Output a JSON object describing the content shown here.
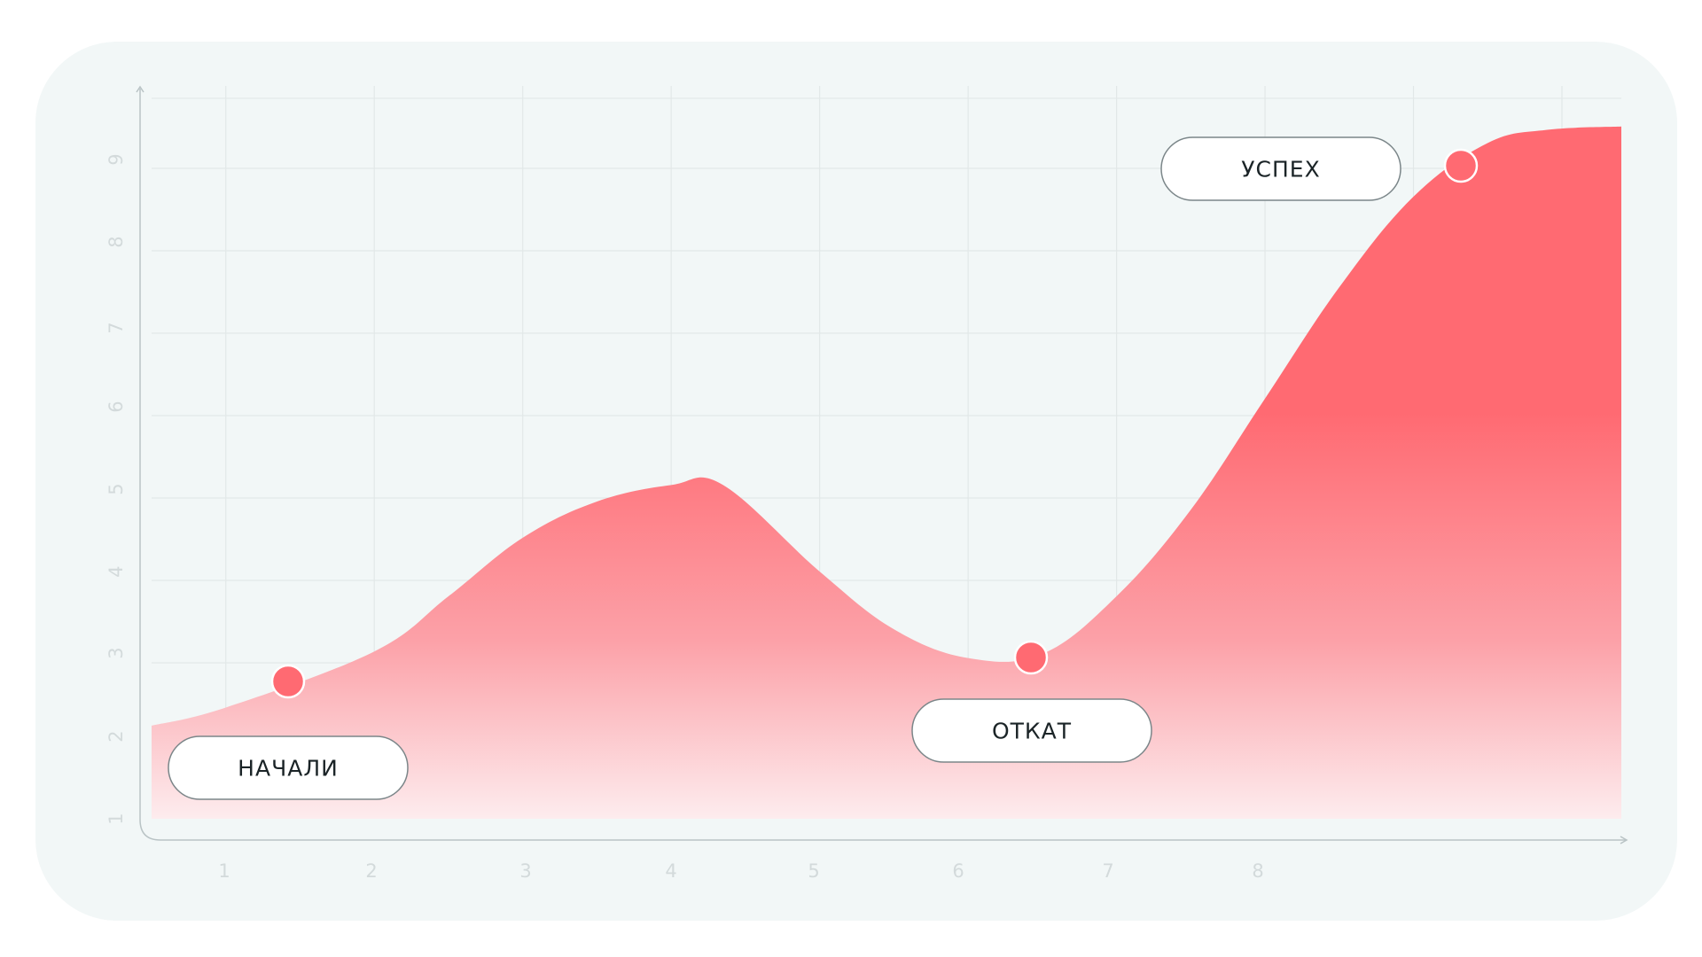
{
  "chart_data": {
    "type": "area",
    "title": "",
    "xlabel": "",
    "ylabel": "",
    "x_ticks": [
      "1",
      "2",
      "3",
      "4",
      "5",
      "6",
      "7",
      "8"
    ],
    "y_ticks": [
      "1",
      "2",
      "3",
      "4",
      "5",
      "6",
      "7",
      "8",
      "9"
    ],
    "xlim": [
      0.5,
      10.4
    ],
    "ylim": [
      1,
      9.5
    ],
    "grid": true,
    "series": [
      {
        "values": [
          {
            "x": 0.5,
            "y": 2.13
          },
          {
            "x": 1.0,
            "y": 2.35
          },
          {
            "x": 2.0,
            "y": 3.03
          },
          {
            "x": 2.5,
            "y": 3.7
          },
          {
            "x": 3.0,
            "y": 4.41
          },
          {
            "x": 3.5,
            "y": 4.85
          },
          {
            "x": 4.0,
            "y": 5.05
          },
          {
            "x": 4.35,
            "y": 5.05
          },
          {
            "x": 5.0,
            "y": 4.0
          },
          {
            "x": 5.5,
            "y": 3.3
          },
          {
            "x": 6.0,
            "y": 2.95
          },
          {
            "x": 6.5,
            "y": 3.0
          },
          {
            "x": 7.0,
            "y": 3.7
          },
          {
            "x": 7.5,
            "y": 4.75
          },
          {
            "x": 8.0,
            "y": 6.1
          },
          {
            "x": 8.5,
            "y": 7.45
          },
          {
            "x": 9.0,
            "y": 8.55
          },
          {
            "x": 9.5,
            "y": 9.2
          },
          {
            "x": 9.9,
            "y": 9.36
          },
          {
            "x": 10.4,
            "y": 9.4
          }
        ]
      }
    ],
    "markers": [
      {
        "x": 1.0,
        "y": 2.35,
        "label": "НАЧАЛИ"
      },
      {
        "x": 6.0,
        "y": 2.95,
        "label": "ОТКАТ"
      },
      {
        "x": 8.9,
        "y": 8.35,
        "label": "УСПЕХ"
      }
    ]
  },
  "colors": {
    "card_bg": "#f2f7f7",
    "grid": "#e2e8e8",
    "axis": "#b9c3c5",
    "area_top": "#ff6a72",
    "area_mid": "#fca1a8",
    "area_bottom": "#fdecee",
    "marker": "#ff6a72"
  }
}
